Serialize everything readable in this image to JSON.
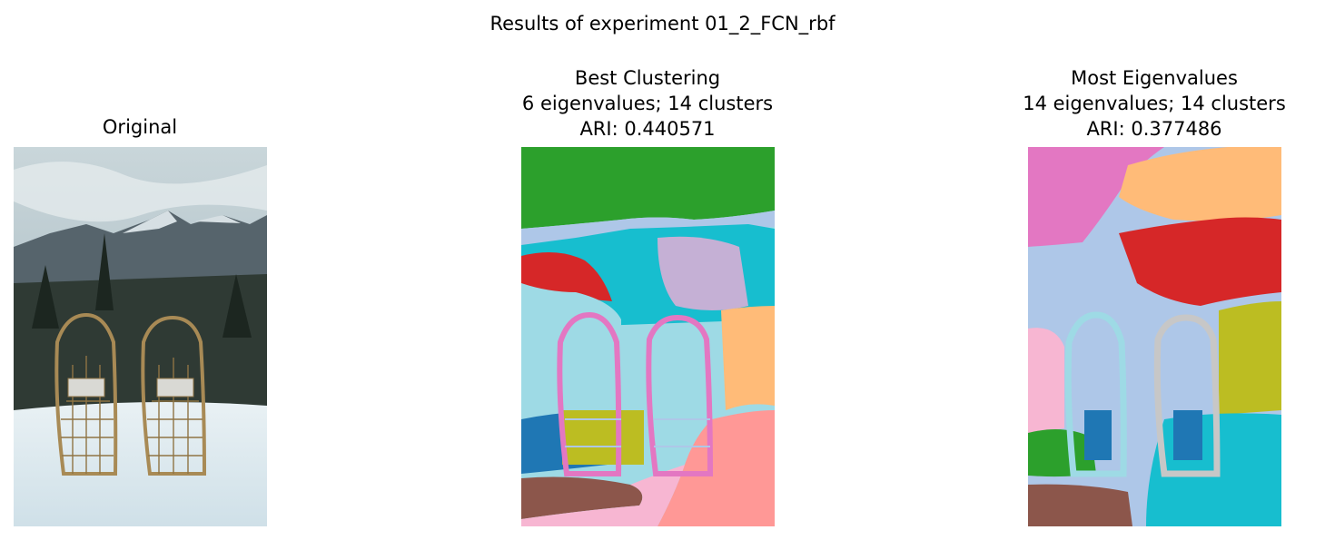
{
  "figure": {
    "suptitle": "Results of experiment 01_2_FCN_rbf"
  },
  "panels": [
    {
      "title_lines": [
        "Original"
      ]
    },
    {
      "title_lines": [
        "Best Clustering",
        "6 eigenvalues; 14 clusters",
        "ARI: 0.440571"
      ]
    },
    {
      "title_lines": [
        "Most Eigenvalues",
        "14 eigenvalues; 14 clusters",
        "ARI: 0.377486"
      ]
    }
  ],
  "palette": {
    "blue": "#1f77b4",
    "light_blue": "#aec7e8",
    "orange_light": "#ffbb78",
    "green": "#2ca02c",
    "red": "#d62728",
    "salmon": "#ff9896",
    "lavender": "#c5b0d5",
    "brown": "#8c564b",
    "pink": "#e377c2",
    "light_pink": "#f7b6d2",
    "gray": "#c7c7c7",
    "olive": "#bcbd22",
    "cyan": "#17becf",
    "light_cyan": "#9edae5"
  }
}
